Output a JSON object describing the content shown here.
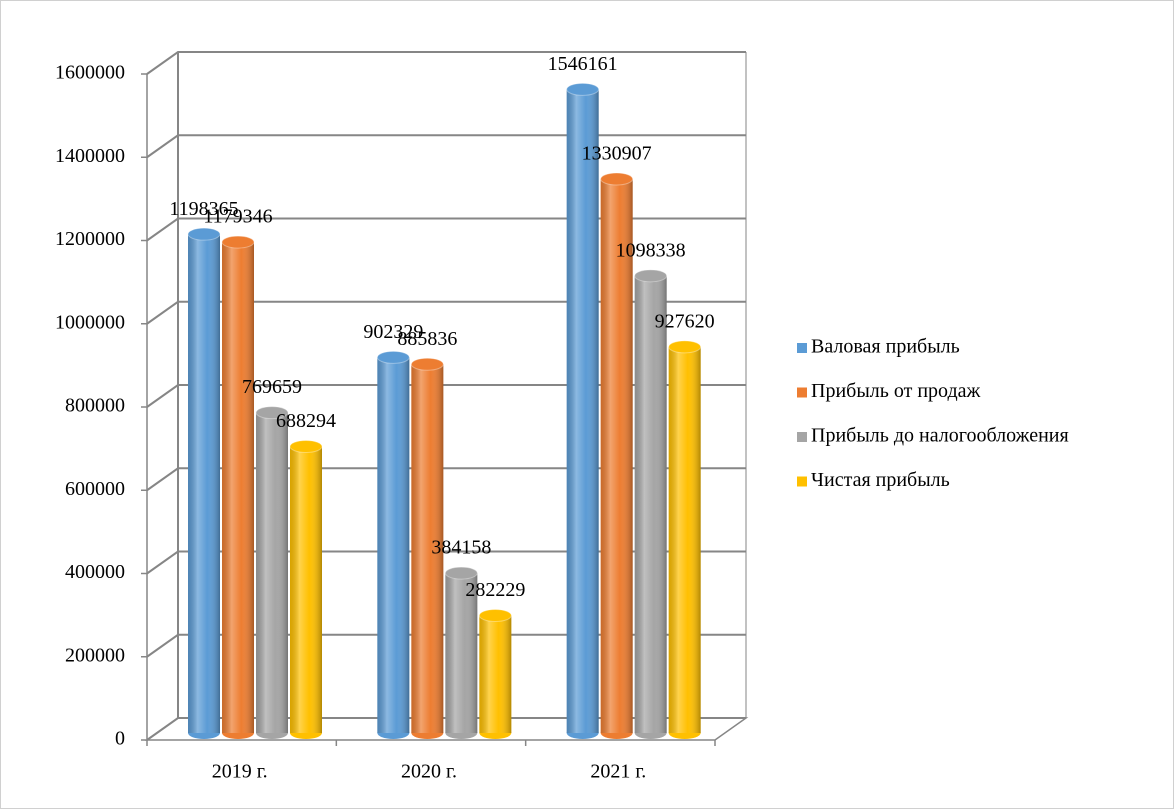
{
  "chart_data": {
    "type": "bar3d",
    "categories": [
      "2019 г.",
      "2020 г.",
      "2021 г."
    ],
    "series": [
      {
        "name": "Валовая прибыль",
        "color": "#5b9bd5",
        "values": [
          1198365,
          902329,
          1546161
        ]
      },
      {
        "name": "Прибыль от продаж",
        "color": "#ed7d31",
        "values": [
          1179346,
          885836,
          1330907
        ]
      },
      {
        "name": "Прибыль до налогообложения",
        "color": "#a5a5a5",
        "values": [
          769659,
          384158,
          1098338
        ]
      },
      {
        "name": "Чистая прибыль",
        "color": "#ffc000",
        "values": [
          688294,
          282229,
          927620
        ]
      }
    ],
    "ylim": [
      0,
      1600000
    ],
    "yticks": [
      0,
      200000,
      400000,
      600000,
      800000,
      1000000,
      1200000,
      1400000,
      1600000
    ],
    "grid": true,
    "legend": "right"
  }
}
